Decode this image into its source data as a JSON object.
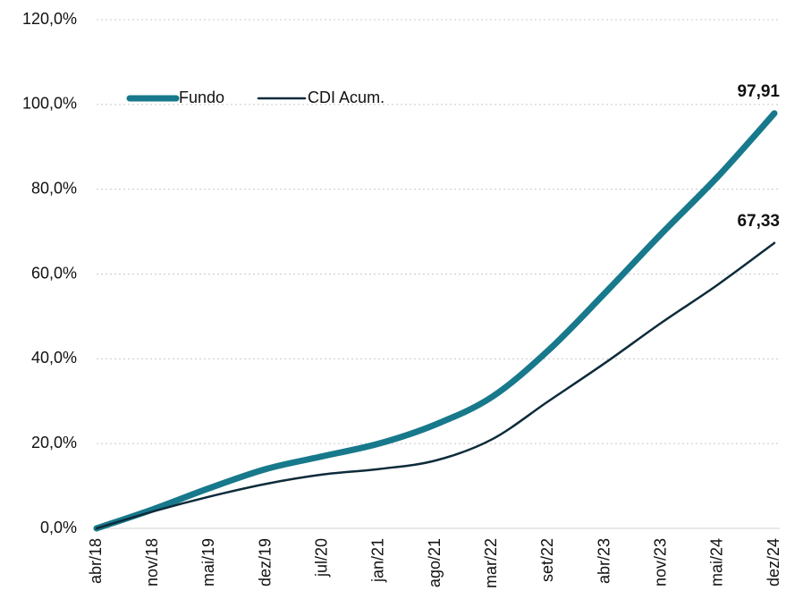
{
  "chart_data": {
    "type": "line",
    "categories": [
      "abr/18",
      "nov/18",
      "mai/19",
      "dez/19",
      "jul/20",
      "jan/21",
      "ago/21",
      "mar/22",
      "set/22",
      "abr/23",
      "nov/23",
      "mai/24",
      "dez/24"
    ],
    "series": [
      {
        "name": "Fundo",
        "color": "#17798b",
        "values": [
          0,
          4.5,
          9.5,
          14,
          17,
          20,
          24.5,
          31,
          42,
          55.5,
          69.5,
          83,
          97.91
        ],
        "value_labels": [
          null,
          null,
          null,
          null,
          null,
          null,
          null,
          null,
          null,
          null,
          null,
          null,
          "97,91"
        ]
      },
      {
        "name": "CDI Acum.",
        "color": "#0d2b3a",
        "values": [
          0,
          4,
          7.5,
          10.5,
          12.7,
          14,
          16,
          21,
          30,
          39,
          48.5,
          57.5,
          67.33
        ],
        "value_labels": [
          null,
          null,
          null,
          null,
          null,
          null,
          null,
          null,
          null,
          null,
          null,
          null,
          "67,33"
        ]
      }
    ],
    "ylim": [
      0,
      120
    ],
    "yticks": [
      {
        "value": 0,
        "label": "0,0%"
      },
      {
        "value": 20,
        "label": "20,0%"
      },
      {
        "value": 40,
        "label": "40,0%"
      },
      {
        "value": 60,
        "label": "60,0%"
      },
      {
        "value": 80,
        "label": "80,0%"
      },
      {
        "value": 100,
        "label": "100,0%"
      },
      {
        "value": 120,
        "label": "120,0%"
      }
    ],
    "grid": true,
    "legend": "top-left"
  }
}
